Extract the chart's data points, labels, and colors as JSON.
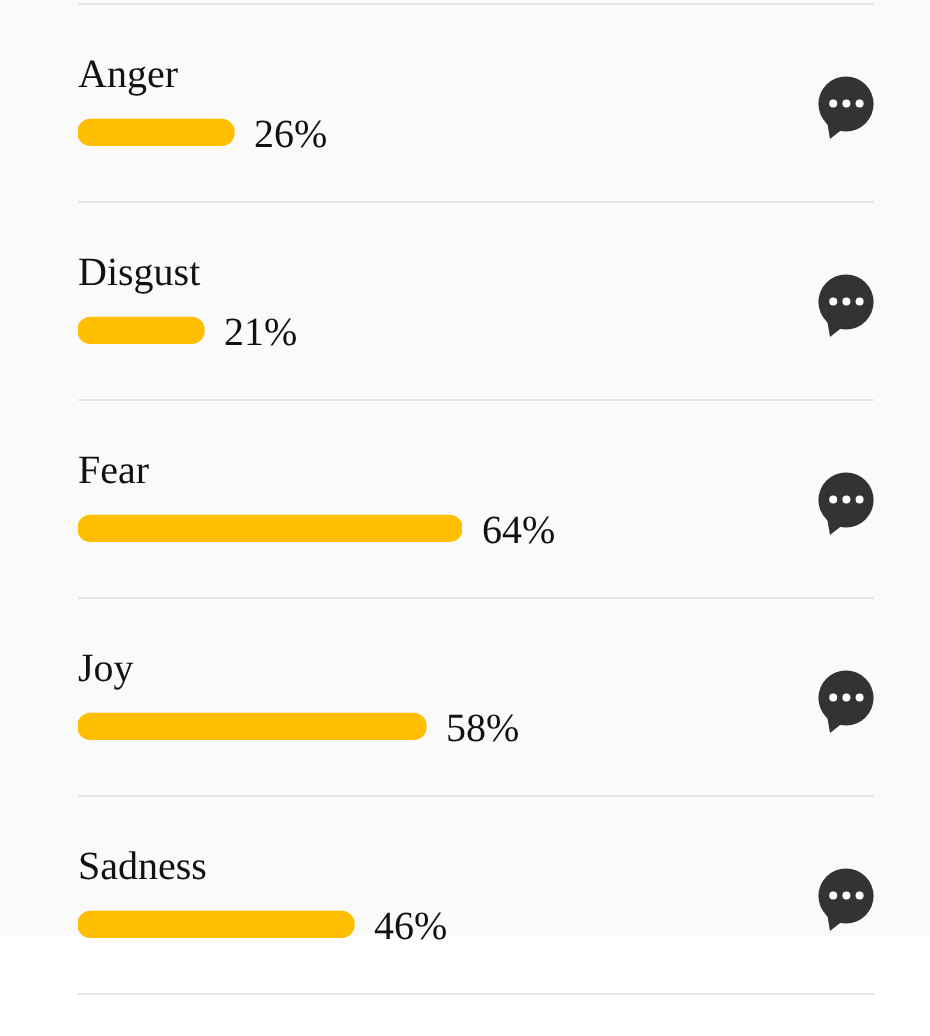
{
  "chart_data": {
    "type": "bar",
    "orientation": "horizontal",
    "categories": [
      "Anger",
      "Disgust",
      "Fear",
      "Joy",
      "Sadness"
    ],
    "values": [
      26,
      21,
      64,
      58,
      46
    ],
    "value_labels": [
      "26%",
      "21%",
      "64%",
      "58%",
      "46%"
    ],
    "color": "#ffbe00",
    "grid": "y",
    "tick_labels": "y"
  }
}
